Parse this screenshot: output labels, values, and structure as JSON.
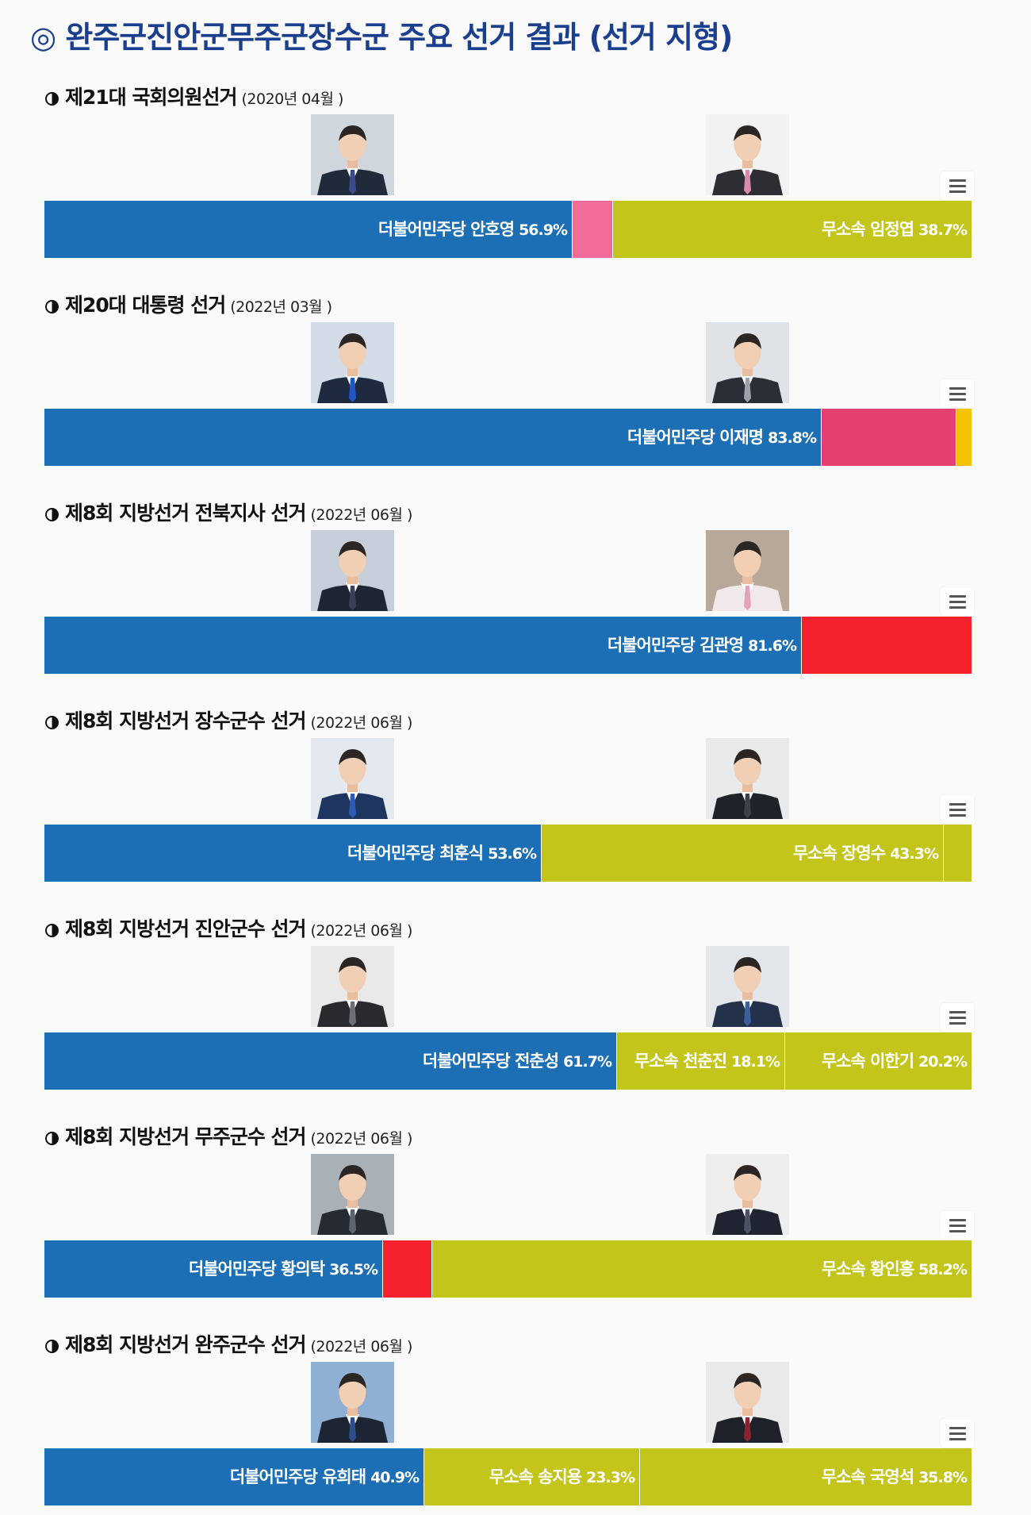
{
  "page": {
    "title": "◎ 완주군진안군무주군장수군 주요 선거 결과 (선거 지형)"
  },
  "colors": {
    "democratic": "#1c6fb5",
    "independent": "#c3c51a",
    "peoplepower_pink": "#f16b9b",
    "peoplepower_magenta": "#e3416f",
    "yellow_minor": "#f5c400",
    "red": "#f5222d"
  },
  "icons": {
    "heading_marker": "half-filled-circle-icon",
    "chart_menu": "hamburger-menu-icon"
  },
  "chart_data": [
    {
      "type": "bar",
      "stacked": true,
      "orientation": "horizontal",
      "title": "제21대 국회의원선거",
      "date": "(2020년 04월 )",
      "segments": [
        {
          "party": "더불어민주당",
          "name": "안호영",
          "value": 56.9,
          "pct_text": "56.9%",
          "color": "#1c6fb5"
        },
        {
          "party": "",
          "name": "",
          "value": 4.4,
          "pct_text": "",
          "color": "#f16b9b"
        },
        {
          "party": "무소속",
          "name": "임정엽",
          "value": 38.7,
          "pct_text": "38.7%",
          "color": "#c3c51a"
        }
      ]
    },
    {
      "type": "bar",
      "stacked": true,
      "orientation": "horizontal",
      "title": "제20대 대통령 선거",
      "date": "(2022년 03월 )",
      "segments": [
        {
          "party": "더불어민주당",
          "name": "이재명",
          "value": 83.8,
          "pct_text": "83.8%",
          "color": "#1c6fb5"
        },
        {
          "party": "",
          "name": "",
          "value": 14.5,
          "pct_text": "",
          "color": "#e3416f"
        },
        {
          "party": "",
          "name": "",
          "value": 1.7,
          "pct_text": "",
          "color": "#f5c400"
        }
      ]
    },
    {
      "type": "bar",
      "stacked": true,
      "orientation": "horizontal",
      "title": "제8회 지방선거 전북지사 선거",
      "date": "(2022년 06월 )",
      "segments": [
        {
          "party": "더불어민주당",
          "name": "김관영",
          "value": 81.6,
          "pct_text": "81.6%",
          "color": "#1c6fb5"
        },
        {
          "party": "",
          "name": "",
          "value": 18.4,
          "pct_text": "",
          "color": "#f5222d"
        }
      ]
    },
    {
      "type": "bar",
      "stacked": true,
      "orientation": "horizontal",
      "title": "제8회 지방선거 장수군수 선거",
      "date": "(2022년 06월 )",
      "segments": [
        {
          "party": "더불어민주당",
          "name": "최훈식",
          "value": 53.6,
          "pct_text": "53.6%",
          "color": "#1c6fb5"
        },
        {
          "party": "무소속",
          "name": "장영수",
          "value": 43.3,
          "pct_text": "43.3%",
          "color": "#c3c51a"
        },
        {
          "party": "",
          "name": "",
          "value": 3.1,
          "pct_text": "",
          "color": "#c3c51a"
        }
      ]
    },
    {
      "type": "bar",
      "stacked": true,
      "orientation": "horizontal",
      "title": "제8회 지방선거 진안군수 선거",
      "date": "(2022년 06월 )",
      "segments": [
        {
          "party": "더불어민주당",
          "name": "전춘성",
          "value": 61.7,
          "pct_text": "61.7%",
          "color": "#1c6fb5"
        },
        {
          "party": "무소속",
          "name": "천춘진",
          "value": 18.1,
          "pct_text": "18.1%",
          "color": "#c3c51a"
        },
        {
          "party": "무소속",
          "name": "이한기",
          "value": 20.2,
          "pct_text": "20.2%",
          "color": "#c3c51a"
        }
      ]
    },
    {
      "type": "bar",
      "stacked": true,
      "orientation": "horizontal",
      "title": "제8회 지방선거 무주군수 선거",
      "date": "(2022년 06월 )",
      "segments": [
        {
          "party": "더불어민주당",
          "name": "황의탁",
          "value": 36.5,
          "pct_text": "36.5%",
          "color": "#1c6fb5"
        },
        {
          "party": "",
          "name": "",
          "value": 5.3,
          "pct_text": "",
          "color": "#f5222d"
        },
        {
          "party": "무소속",
          "name": "황인홍",
          "value": 58.2,
          "pct_text": "58.2%",
          "color": "#c3c51a"
        }
      ]
    },
    {
      "type": "bar",
      "stacked": true,
      "orientation": "horizontal",
      "title": "제8회 지방선거 완주군수 선거",
      "date": "(2022년 06월 )",
      "segments": [
        {
          "party": "더불어민주당",
          "name": "유희태",
          "value": 40.9,
          "pct_text": "40.9%",
          "color": "#1c6fb5"
        },
        {
          "party": "무소속",
          "name": "송지용",
          "value": 23.3,
          "pct_text": "23.3%",
          "color": "#c3c51a"
        },
        {
          "party": "무소속",
          "name": "국영석",
          "value": 35.8,
          "pct_text": "35.8%",
          "color": "#c3c51a"
        }
      ]
    }
  ],
  "photos": [
    {
      "left": {
        "suit": "#1f2a3a",
        "tie": "#3a4a8a",
        "bg": "#cfd6dd"
      },
      "right": {
        "suit": "#2d2d33",
        "tie": "#d98ab0",
        "bg": "#f2f2f2"
      }
    },
    {
      "left": {
        "suit": "#1d2a40",
        "tie": "#1f56c8",
        "bg": "#d3dbe6"
      },
      "right": {
        "suit": "#2b2e36",
        "tie": "#9aa3ad",
        "bg": "#dfe2e6"
      }
    },
    {
      "left": {
        "suit": "#1f2533",
        "tie": "#3b3f58",
        "bg": "#c6cfd9"
      },
      "right": {
        "suit": "#f1e8ea",
        "tie": "#e2a2b8",
        "bg": "#b8a89a"
      }
    },
    {
      "left": {
        "suit": "#1e3560",
        "tie": "#2b5bb5",
        "bg": "#e4e9ef"
      },
      "right": {
        "suit": "#1e2229",
        "tie": "#3b3f48",
        "bg": "#e8eaec"
      }
    },
    {
      "left": {
        "suit": "#2a2a2e",
        "tie": "#6a6f78",
        "bg": "#e9e9e9"
      },
      "right": {
        "suit": "#23324a",
        "tie": "#3e5f9e",
        "bg": "#e3e6ea"
      }
    },
    {
      "left": {
        "suit": "#262a33",
        "tie": "#5c6470",
        "bg": "#a9b0b6"
      },
      "right": {
        "suit": "#1f2430",
        "tie": "#4a5366",
        "bg": "#eeeeee"
      }
    },
    {
      "left": {
        "suit": "#1d2534",
        "tie": "#2f4e8e",
        "bg": "#8fb0d4"
      },
      "right": {
        "suit": "#1e2129",
        "tie": "#8a2430",
        "bg": "#e9e9e9"
      }
    }
  ]
}
